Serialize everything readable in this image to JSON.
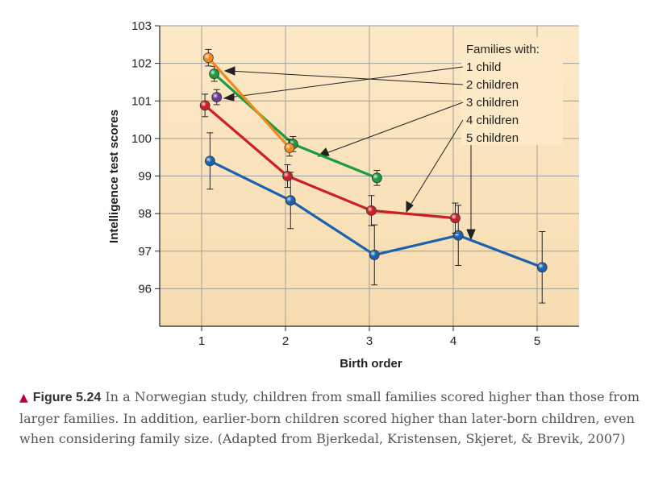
{
  "chart_data": {
    "type": "line",
    "xlabel": "Birth order",
    "ylabel": "Intelligence test scores",
    "xlim": [
      0.5,
      5.5
    ],
    "ylim": [
      95,
      103
    ],
    "x_ticks": [
      "1",
      "2",
      "3",
      "4",
      "5"
    ],
    "y_ticks": [
      "96",
      "97",
      "98",
      "99",
      "100",
      "101",
      "102",
      "103"
    ],
    "grid": true,
    "legend_title": "Families with:",
    "legend_placement": "top-right",
    "series": [
      {
        "name": "5 children",
        "color": "#1a62b0",
        "x": [
          1,
          2,
          3,
          4,
          5
        ],
        "y": [
          99.4,
          98.35,
          96.9,
          97.42,
          96.57
        ],
        "err": [
          0.75,
          0.75,
          0.8,
          0.8,
          0.95
        ]
      },
      {
        "name": "4 children",
        "color": "#cc1f27",
        "x": [
          1,
          2,
          3,
          4
        ],
        "y": [
          100.88,
          99.0,
          98.08,
          97.88
        ],
        "err": [
          0.3,
          0.3,
          0.4,
          0.4
        ]
      },
      {
        "name": "3 children",
        "color": "#1e9a45",
        "x": [
          1,
          2,
          3
        ],
        "y": [
          101.72,
          99.85,
          98.95
        ],
        "err": [
          0.2,
          0.2,
          0.2
        ]
      },
      {
        "name": "2 children",
        "color": "#f08a1e",
        "x": [
          1,
          2
        ],
        "y": [
          102.15,
          99.75
        ],
        "err": [
          0.22,
          0.22
        ]
      },
      {
        "name": "1 child",
        "color": "#6a3a9a",
        "x": [
          1
        ],
        "y": [
          101.1
        ],
        "err": [
          0.2
        ]
      }
    ]
  },
  "caption": {
    "label": "Figure 5.24",
    "text": "In a Norwegian study, children from small families scored higher than those from larger families. In addition, earlier-born children scored higher than later-born children, even when considering family size. (Adapted from Bjerkedal, Kristensen, Skjeret, & Brevik, 2007)"
  }
}
